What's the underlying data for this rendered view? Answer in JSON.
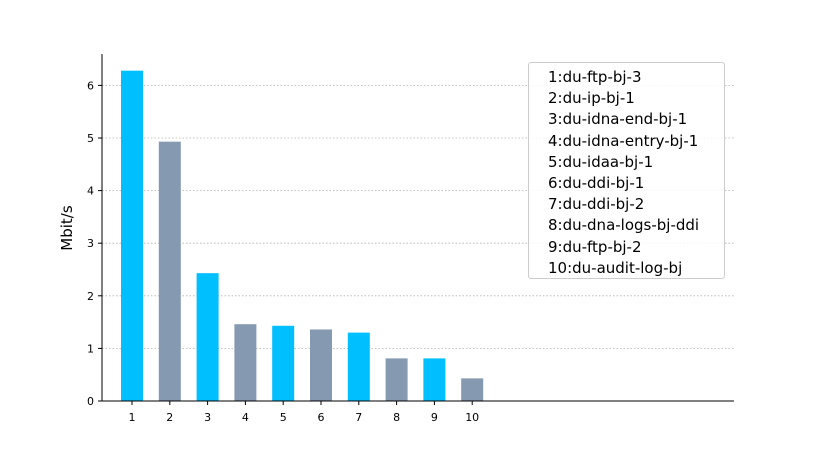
{
  "chart_data": {
    "type": "bar",
    "categories": [
      "1",
      "2",
      "3",
      "4",
      "5",
      "6",
      "7",
      "8",
      "9",
      "10"
    ],
    "values": [
      6.28,
      4.93,
      2.43,
      1.46,
      1.43,
      1.36,
      1.3,
      0.81,
      0.81,
      0.43
    ],
    "ylabel": "Mbit/s",
    "ylim": [
      0,
      6.6
    ],
    "yticks": [
      "0",
      "1",
      "2",
      "3",
      "4",
      "5",
      "6"
    ],
    "grid": "y dotted",
    "legend_position": "top-right",
    "legend": [
      "1:du-ftp-bj-3",
      "2:du-ip-bj-1",
      "3:du-idna-end-bj-1",
      "4:du-idna-entry-bj-1",
      "5:du-idaa-bj-1",
      "6:du-ddi-bj-1",
      "7:du-ddi-bj-2",
      "8:du-dna-logs-bj-ddi",
      "9:du-ftp-bj-2",
      "10:du-audit-log-bj"
    ],
    "colors": [
      "#00bfff",
      "#8599b1"
    ]
  }
}
